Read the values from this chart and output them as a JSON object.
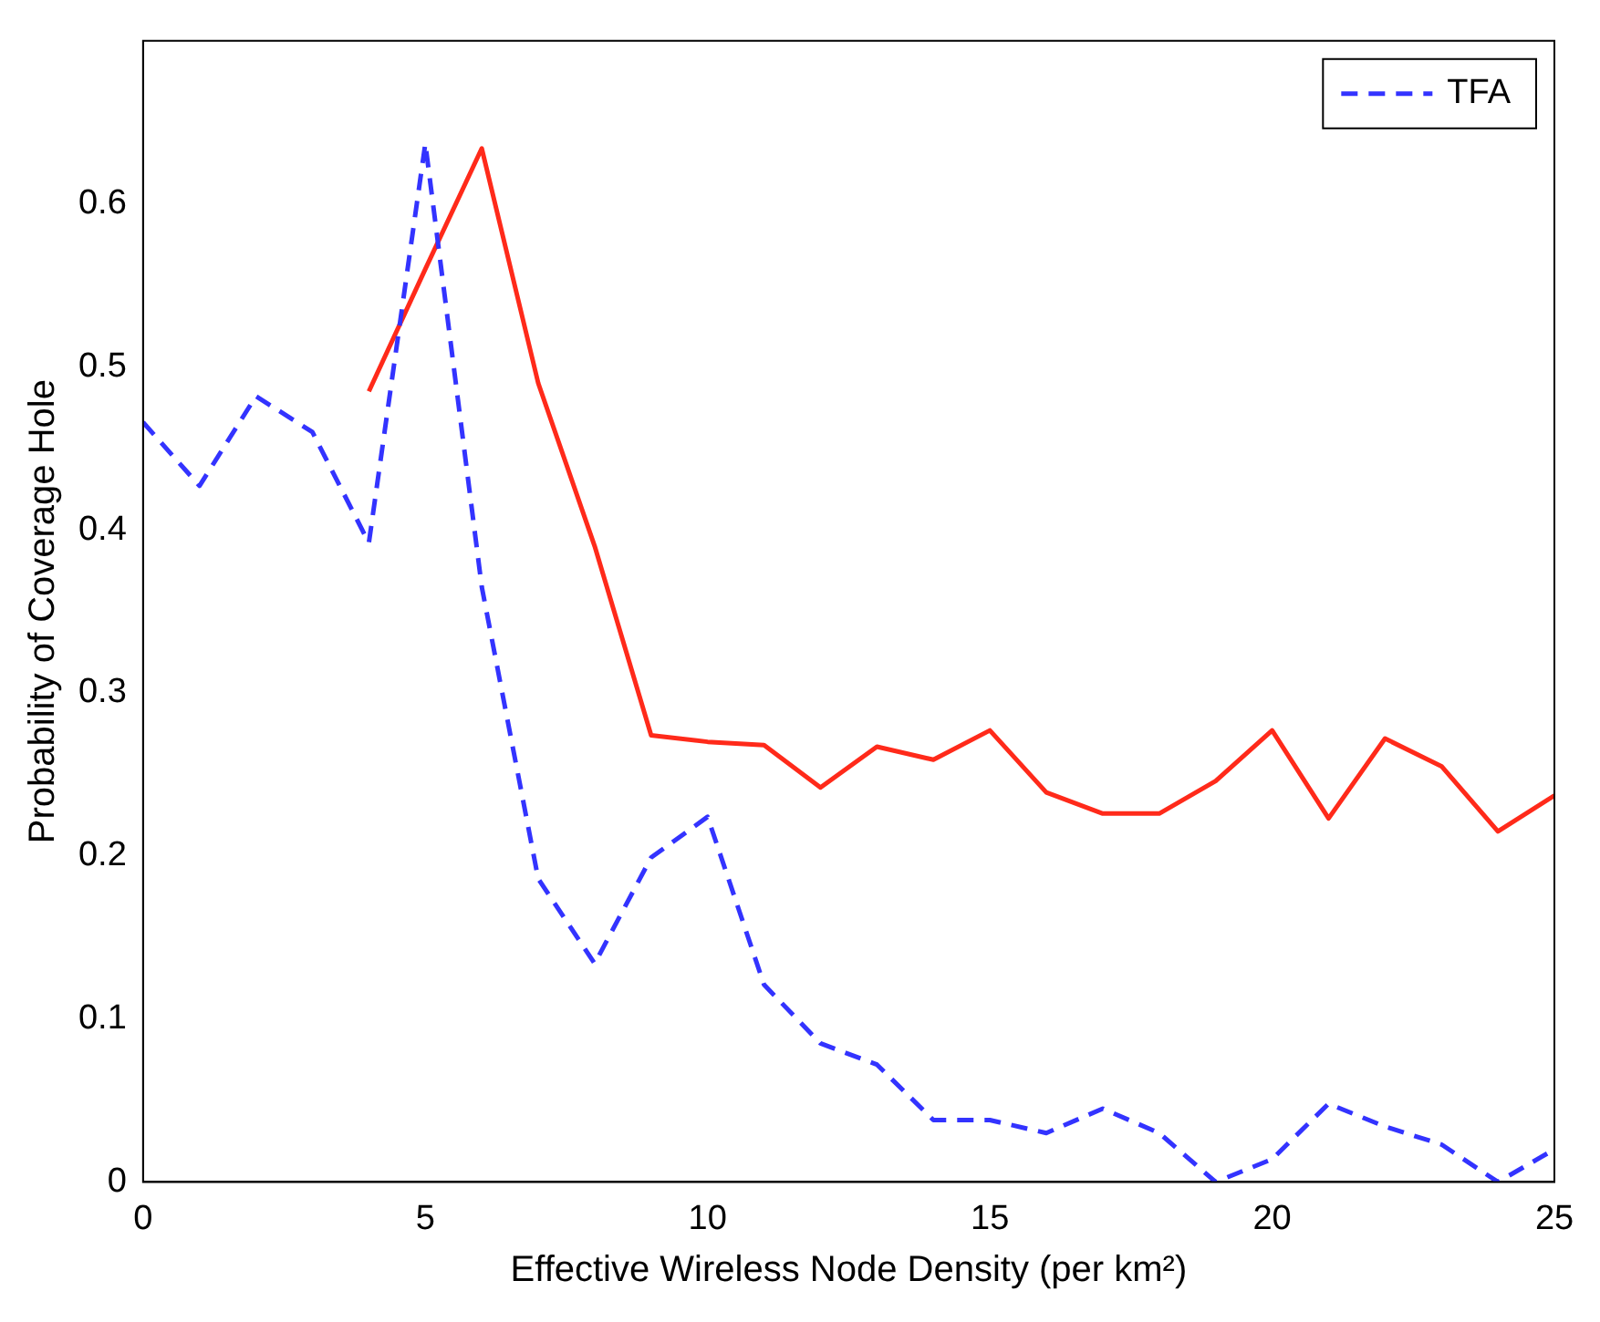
{
  "chart_data": {
    "type": "line",
    "xlabel": "Effective Wireless Node Density (per km²)",
    "ylabel": "Probability of Coverage Hole",
    "series": [
      {
        "name": "TFA",
        "color": "#3333ff",
        "line_style": "dashed",
        "x": [
          0,
          1,
          2,
          3,
          4,
          5,
          6,
          7,
          8,
          9,
          10,
          11,
          12,
          13,
          14,
          15,
          16,
          17,
          18,
          19,
          20,
          21,
          22,
          23,
          24,
          25
        ],
        "values": [
          0.466,
          0.427,
          0.482,
          0.46,
          0.392,
          0.637,
          0.365,
          0.186,
          0.134,
          0.199,
          0.224,
          0.121,
          0.085,
          0.072,
          0.038,
          0.038,
          0.03,
          0.045,
          0.03,
          0,
          0.014,
          0.048,
          0.034,
          0.023,
          0,
          0.02
        ]
      },
      {
        "color": "#ff2a1a",
        "line_style": "solid",
        "x": [
          4,
          5,
          6,
          7,
          8,
          9,
          10,
          11,
          12,
          13,
          14,
          15,
          16,
          17,
          18,
          19,
          20,
          21,
          22,
          23,
          24,
          25
        ],
        "values": [
          0.485,
          0.56,
          0.634,
          0.49,
          0.39,
          0.274,
          0.27,
          0.268,
          0.242,
          0.267,
          0.259,
          0.277,
          0.239,
          0.226,
          0.226,
          0.246,
          0.277,
          0.223,
          0.272,
          0.255,
          0.215,
          0.237
        ]
      }
    ],
    "xlim": [
      0,
      25
    ],
    "xticks": [
      0,
      5,
      10,
      15,
      20,
      25
    ],
    "ylim": [
      0,
      0.7
    ],
    "yticks": [
      0,
      0.1,
      0.2,
      0.3,
      0.4,
      0.5,
      0.6
    ],
    "grid": false,
    "legend": "top right",
    "marker": "none"
  }
}
